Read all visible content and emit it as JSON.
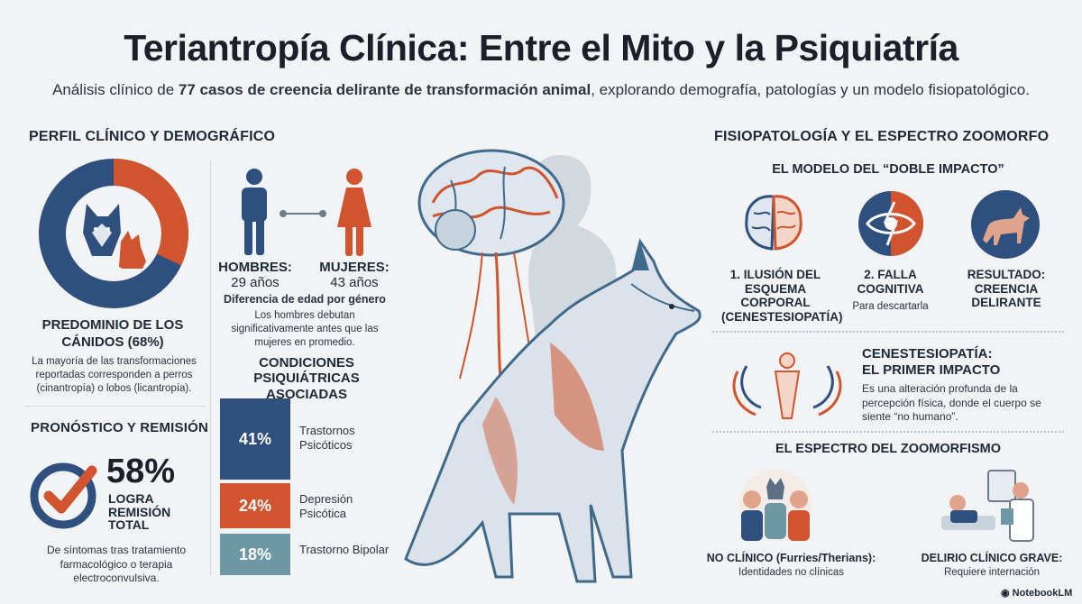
{
  "header": {
    "title": "Teriantropía Clínica: Entre el Mito y la Psiquiatría",
    "subtitle_pre": "Análisis clínico de ",
    "subtitle_bold": "77 casos de creencia delirante de transformación animal",
    "subtitle_post": ", explorando demografía, patologías y un modelo fisiopatológico."
  },
  "left": {
    "section_title": "PERFIL CLÍNICO Y DEMOGRÁFICO",
    "donut": {
      "percent": 68,
      "color_main": "#2f4f7f",
      "color_accent": "#d0542e",
      "heading": "PREDOMINIO DE LOS CÁNIDOS (68%)",
      "desc": "La mayoría de las transformaciones reportadas corresponden a perros (cinantropía) o lobos (licantropía)."
    },
    "prognosis": {
      "title": "PRONÓSTICO Y REMISIÓN",
      "value": "58%",
      "label": "LOGRA REMISIÓN TOTAL",
      "desc": "De síntomas tras tratamiento farmacológico o terapia electroconvulsiva."
    },
    "gender": {
      "men_label": "HOMBRES:",
      "men_age": "29 años",
      "women_label": "MUJERES:",
      "women_age": "43 años",
      "heading": "Diferencia de edad por género",
      "desc": "Los hombres debutan significativamente antes que las mujeres en promedio."
    },
    "conditions": {
      "title": "CONDICIONES PSIQUIÁTRICAS ASOCIADAS",
      "items": [
        {
          "value": "41%",
          "label": "Trastornos Psicóticos",
          "color": "#2f4f7f"
        },
        {
          "value": "24%",
          "label": "Depresión Psicótica",
          "color": "#d0542e"
        },
        {
          "value": "18%",
          "label": "Trastorno Bipolar",
          "color": "#6d97a4"
        }
      ]
    }
  },
  "right": {
    "section_title": "FISIOPATOLOGÍA Y EL ESPECTRO ZOOMORFO",
    "model_title": "EL MODELO DEL “DOBLE IMPACTO”",
    "steps": [
      {
        "title": "1. ILUSIÓN DEL ESQUEMA CORPORAL (CENESTESIOPATÍA)",
        "sub": ""
      },
      {
        "title": "2. FALLA COGNITIVA",
        "sub": "Para descartarla"
      },
      {
        "title": "RESULTADO: CREENCIA DELIRANTE",
        "sub": ""
      }
    ],
    "cenes": {
      "title_1": "CENESTESIOPATÍA:",
      "title_2": "EL PRIMER IMPACTO",
      "desc": "Es una alteración profunda de la percepción física, donde el cuerpo se siente “no humano”."
    },
    "spectrum": {
      "title": "EL ESPECTRO DEL ZOOMORFISMO",
      "left_title": "NO CLÍNICO (Furries/Therians):",
      "left_sub": "Identidades no clínicas",
      "right_title": "DELIRIO CLÍNICO GRAVE:",
      "right_sub": "Requiere internación"
    }
  },
  "footer": {
    "brand": "NotebookLM"
  }
}
